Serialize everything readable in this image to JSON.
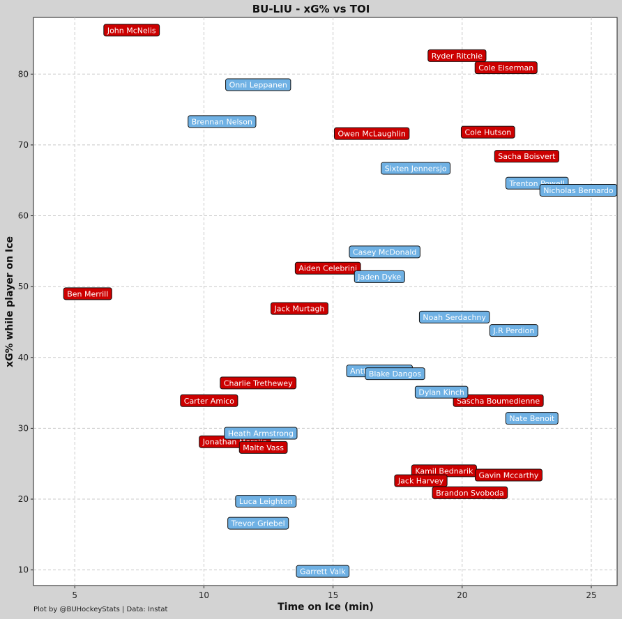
{
  "title": "BU-LIU - xG% vs TOI",
  "credit": "Plot by @BUHockeyStats | Data: Instat",
  "colors": {
    "team_a": "#cc0000",
    "team_b": "#6fb1e4",
    "background": "#d3d3d3",
    "panel": "#ffffff"
  },
  "chart_data": {
    "type": "scatter",
    "title": "BU-LIU - xG% vs TOI",
    "xlabel": "Time on Ice (min)",
    "ylabel": "xG% while player on Ice",
    "xlim": [
      3.4,
      26.0
    ],
    "ylim": [
      7.8,
      88.0
    ],
    "xticks": [
      5,
      10,
      15,
      20,
      25
    ],
    "yticks": [
      10,
      20,
      30,
      40,
      50,
      60,
      70,
      80
    ],
    "grid": true,
    "series": [
      {
        "color": "#cc0000",
        "points": [
          {
            "label": "John McNelis",
            "x": 7.2,
            "y": 86.2
          },
          {
            "label": "Ryder Ritchie",
            "x": 19.8,
            "y": 82.6
          },
          {
            "label": "Cole Eiserman",
            "x": 21.7,
            "y": 80.9
          },
          {
            "label": "Owen McLaughlin",
            "x": 16.5,
            "y": 71.6
          },
          {
            "label": "Cole Hutson",
            "x": 21.0,
            "y": 71.8
          },
          {
            "label": "Sacha Boisvert",
            "x": 22.5,
            "y": 68.4
          },
          {
            "label": "Aiden Celebrini",
            "x": 14.8,
            "y": 52.6
          },
          {
            "label": "Ben Merrill",
            "x": 5.5,
            "y": 49.0
          },
          {
            "label": "Jack Murtagh",
            "x": 13.7,
            "y": 46.9
          },
          {
            "label": "Charlie Trethewey",
            "x": 12.1,
            "y": 36.4
          },
          {
            "label": "Carter Amico",
            "x": 10.2,
            "y": 33.9
          },
          {
            "label": "Sascha Boumedienne",
            "x": 21.4,
            "y": 33.9
          },
          {
            "label": "Jonathan Morello",
            "x": 11.2,
            "y": 28.1
          },
          {
            "label": "Malte Vass",
            "x": 12.3,
            "y": 27.3
          },
          {
            "label": "Kamil Bednarik",
            "x": 19.3,
            "y": 24.0
          },
          {
            "label": "Gavin Mccarthy",
            "x": 21.8,
            "y": 23.4
          },
          {
            "label": "Jack Harvey",
            "x": 18.4,
            "y": 22.6
          },
          {
            "label": "Brandon Svoboda",
            "x": 20.3,
            "y": 20.9
          }
        ]
      },
      {
        "color": "#6fb1e4",
        "points": [
          {
            "label": "Onni Leppanen",
            "x": 12.1,
            "y": 78.5
          },
          {
            "label": "Brennan Nelson",
            "x": 10.7,
            "y": 73.3
          },
          {
            "label": "Sixten Jennersjo",
            "x": 18.2,
            "y": 66.7
          },
          {
            "label": "Trenton Powell",
            "x": 22.9,
            "y": 64.6
          },
          {
            "label": "Nicholas Bernardo",
            "x": 24.5,
            "y": 63.6
          },
          {
            "label": "Casey McDonald",
            "x": 17.0,
            "y": 54.9
          },
          {
            "label": "Jaden Dyke",
            "x": 16.8,
            "y": 51.4
          },
          {
            "label": "Noah Serdachny",
            "x": 19.7,
            "y": 45.7
          },
          {
            "label": "J.R Perdion",
            "x": 22.0,
            "y": 43.8
          },
          {
            "label": "Antti Heikkinen",
            "x": 16.8,
            "y": 38.1
          },
          {
            "label": "Blake Dangos",
            "x": 17.4,
            "y": 37.7
          },
          {
            "label": "Dylan Kinch",
            "x": 19.2,
            "y": 35.1
          },
          {
            "label": "Nate Benoit",
            "x": 22.7,
            "y": 31.4
          },
          {
            "label": "Heath Armstrong",
            "x": 12.2,
            "y": 29.3
          },
          {
            "label": "Luca Leighton",
            "x": 12.4,
            "y": 19.7
          },
          {
            "label": "Trevor Griebel",
            "x": 12.1,
            "y": 16.6
          },
          {
            "label": "Garrett Valk",
            "x": 14.6,
            "y": 9.8
          }
        ]
      }
    ]
  }
}
